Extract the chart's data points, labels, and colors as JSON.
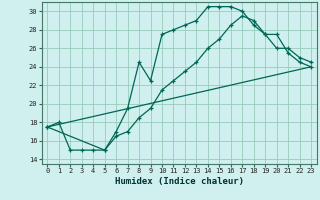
{
  "title": "",
  "xlabel": "Humidex (Indice chaleur)",
  "bg_color": "#cff0ee",
  "grid_color": "#99ccbb",
  "line_color": "#006655",
  "xlim": [
    -0.5,
    23.5
  ],
  "ylim": [
    13.5,
    31.0
  ],
  "xticks": [
    0,
    1,
    2,
    3,
    4,
    5,
    6,
    7,
    8,
    9,
    10,
    11,
    12,
    13,
    14,
    15,
    16,
    17,
    18,
    19,
    20,
    21,
    22,
    23
  ],
  "yticks": [
    14,
    16,
    18,
    20,
    22,
    24,
    26,
    28,
    30
  ],
  "line1_x": [
    0,
    1,
    2,
    3,
    4,
    5,
    6,
    7,
    8,
    9,
    10,
    11,
    12,
    13,
    14,
    15,
    16,
    17,
    18,
    19,
    20,
    21,
    22,
    23
  ],
  "line1_y": [
    17.5,
    18.0,
    15.0,
    15.0,
    15.0,
    15.0,
    17.0,
    19.5,
    24.5,
    22.5,
    27.5,
    28.0,
    28.5,
    29.0,
    30.5,
    30.5,
    30.5,
    30.0,
    28.5,
    27.5,
    26.0,
    26.0,
    25.0,
    24.5
  ],
  "line2_x": [
    0,
    5,
    6,
    7,
    8,
    9,
    10,
    11,
    12,
    13,
    14,
    15,
    16,
    17,
    18,
    19,
    20,
    21,
    22,
    23
  ],
  "line2_y": [
    17.5,
    15.0,
    16.5,
    17.0,
    18.5,
    19.5,
    21.5,
    22.5,
    23.5,
    24.5,
    26.0,
    27.0,
    28.5,
    29.5,
    29.0,
    27.5,
    27.5,
    25.5,
    24.5,
    24.0
  ],
  "line3_x": [
    0,
    23
  ],
  "line3_y": [
    17.5,
    24.0
  ]
}
